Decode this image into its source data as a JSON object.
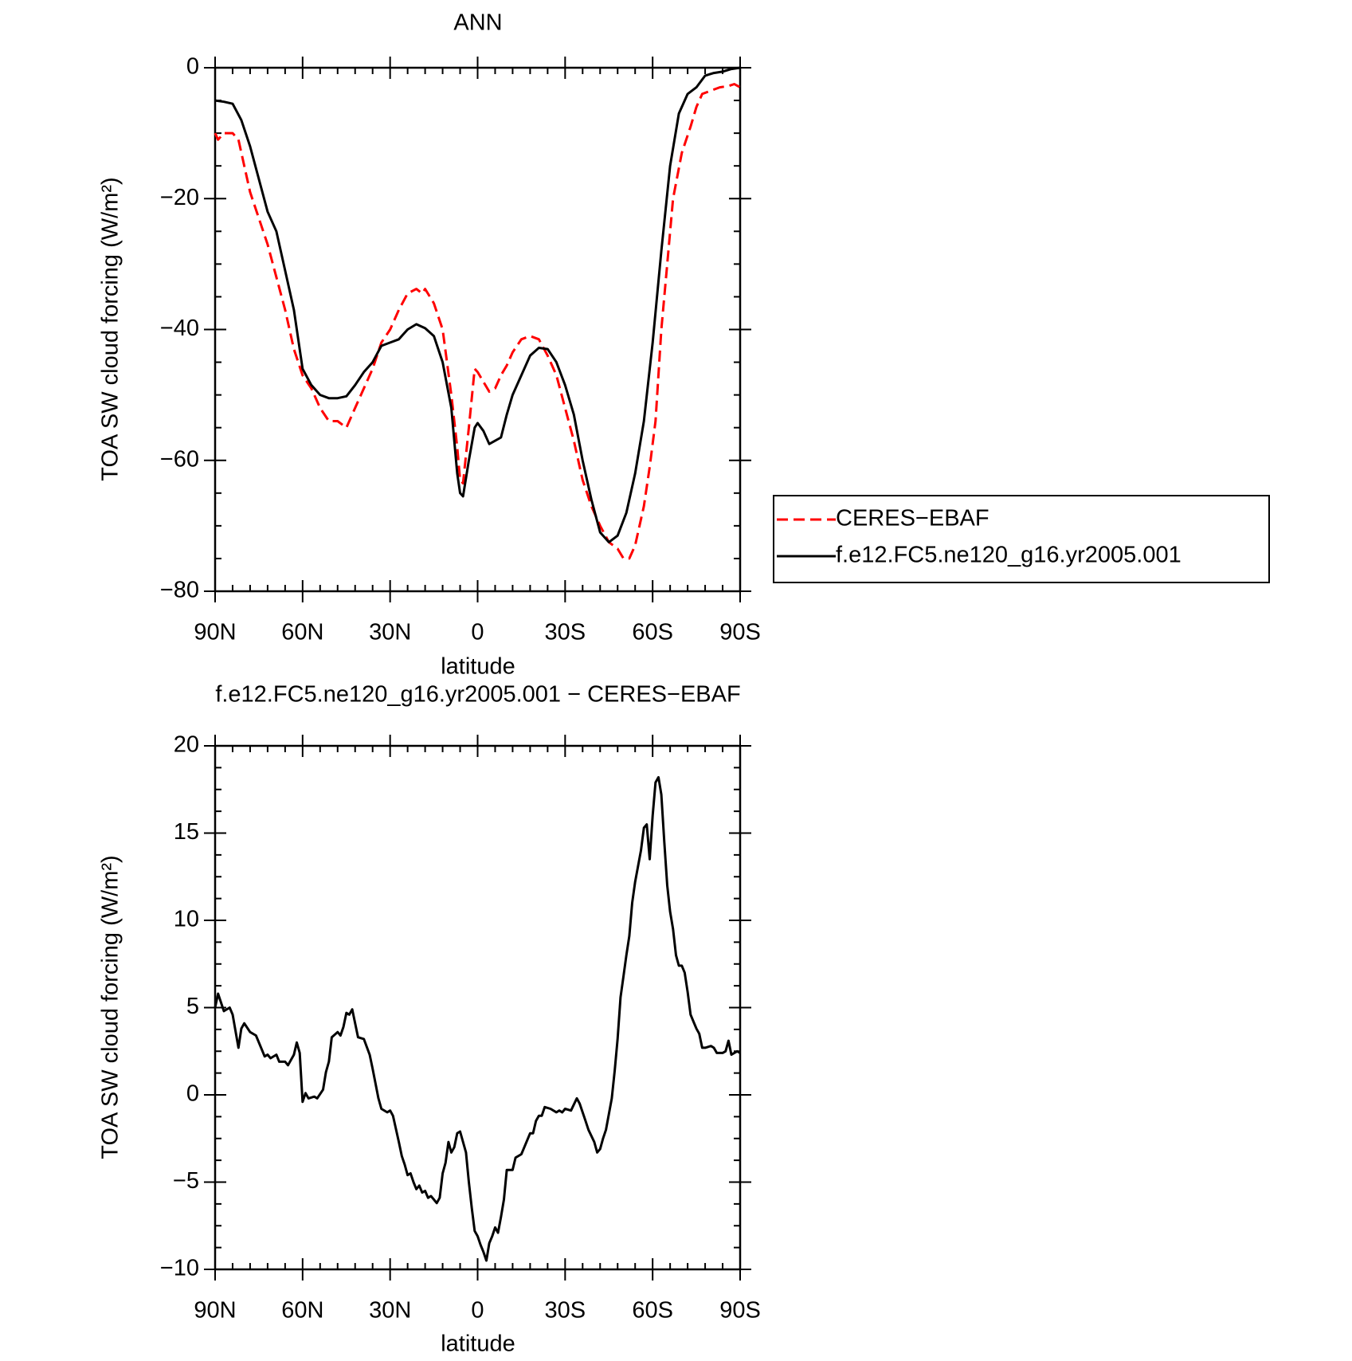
{
  "chart_data": [
    {
      "type": "line",
      "title": "ANN",
      "xlabel": "latitude",
      "ylabel": "TOA SW cloud forcing (W/m²)",
      "xlim": [
        90,
        -90
      ],
      "xticks": [
        {
          "value": 90,
          "label": "90N"
        },
        {
          "value": 60,
          "label": "60N"
        },
        {
          "value": 30,
          "label": "30N"
        },
        0,
        {
          "value": -30,
          "label": "30S"
        },
        {
          "value": -60,
          "label": "60S"
        },
        {
          "value": -90,
          "label": "90S"
        }
      ],
      "ylim": [
        -80,
        0
      ],
      "yticks": [
        {
          "value": -80,
          "label": "−80"
        },
        {
          "value": -60,
          "label": "−60"
        },
        {
          "value": -40,
          "label": "−40"
        },
        {
          "value": -20,
          "label": "−20"
        },
        0
      ],
      "legend": "right",
      "series": [
        {
          "name": "CERES−EBAF",
          "color": "#ff0000",
          "dash": true,
          "x": [
            90,
            89,
            87,
            84,
            82,
            80,
            78,
            75,
            72,
            69,
            66,
            63,
            60,
            57,
            54,
            51,
            48,
            45,
            42,
            39,
            36,
            33,
            30,
            27,
            24,
            21,
            19,
            18,
            15,
            12,
            9,
            7,
            6,
            5,
            3,
            1,
            0,
            -2,
            -4,
            -6,
            -8,
            -10,
            -12,
            -15,
            -18,
            -21,
            -24,
            -27,
            -30,
            -33,
            -36,
            -39,
            -42,
            -45,
            -48,
            -50,
            -52,
            -54,
            -57,
            -59,
            -61,
            -63,
            -65,
            -67,
            -70,
            -73,
            -75,
            -77,
            -80,
            -83,
            -86,
            -88,
            -90
          ],
          "values": [
            -10,
            -11,
            -10,
            -10,
            -11,
            -15,
            -19,
            -23,
            -27,
            -32,
            -37,
            -43,
            -47,
            -49,
            -52,
            -54,
            -54,
            -55,
            -52,
            -49,
            -46,
            -42,
            -40,
            -37,
            -34.5,
            -33.8,
            -34.5,
            -33.8,
            -36,
            -40,
            -50,
            -58,
            -63,
            -63.5,
            -55,
            -46,
            -46.5,
            -48,
            -49.5,
            -49,
            -47,
            -45.5,
            -43.5,
            -41.5,
            -41,
            -41.5,
            -44,
            -47,
            -52,
            -57,
            -63,
            -67,
            -70,
            -72.5,
            -73.5,
            -75,
            -75,
            -73,
            -67,
            -61,
            -54,
            -40,
            -30,
            -20,
            -13,
            -9,
            -6,
            -4,
            -3.5,
            -3,
            -2.8,
            -2.5,
            -3
          ]
        },
        {
          "name": "f.e12.FC5.ne120_g16.yr2005.001",
          "color": "#000000",
          "dash": false,
          "x": [
            90,
            87,
            84,
            81,
            78,
            75,
            72,
            69,
            66,
            63,
            60,
            57,
            54,
            51,
            48,
            45,
            42,
            39,
            36,
            33,
            30,
            27,
            24,
            21,
            18,
            15,
            12,
            9,
            7,
            6,
            5,
            3,
            1,
            0,
            -2,
            -4,
            -6,
            -8,
            -10,
            -12,
            -15,
            -18,
            -21,
            -24,
            -27,
            -30,
            -33,
            -36,
            -39,
            -42,
            -45,
            -48,
            -51,
            -54,
            -57,
            -60,
            -63,
            -66,
            -69,
            -72,
            -75,
            -78,
            -81,
            -84,
            -87,
            -90
          ],
          "values": [
            -5,
            -5.2,
            -5.5,
            -8,
            -12,
            -17,
            -22,
            -25,
            -31,
            -37,
            -46,
            -48.5,
            -50,
            -50.5,
            -50.5,
            -50.2,
            -48.5,
            -46.5,
            -45,
            -42.5,
            -42,
            -41.5,
            -40,
            -39.2,
            -39.8,
            -41,
            -45,
            -52,
            -62,
            -65,
            -65.5,
            -60,
            -55,
            -54.3,
            -55.5,
            -57.5,
            -57,
            -56.5,
            -53,
            -50,
            -47,
            -44,
            -42.8,
            -43,
            -45,
            -48.5,
            -53,
            -60,
            -66,
            -71,
            -72.5,
            -71.5,
            -68,
            -62,
            -54,
            -42,
            -28,
            -15,
            -7,
            -4,
            -3,
            -1.2,
            -0.8,
            -0.6,
            -0.2,
            0
          ]
        }
      ]
    },
    {
      "type": "line",
      "title": "f.e12.FC5.ne120_g16.yr2005.001 − CERES−EBAF",
      "xlabel": "latitude",
      "ylabel": "TOA SW cloud forcing (W/m²)",
      "xlim": [
        90,
        -90
      ],
      "xticks": [
        {
          "value": 90,
          "label": "90N"
        },
        {
          "value": 60,
          "label": "60N"
        },
        {
          "value": 30,
          "label": "30N"
        },
        0,
        {
          "value": -30,
          "label": "30S"
        },
        {
          "value": -60,
          "label": "60S"
        },
        {
          "value": -90,
          "label": "90S"
        }
      ],
      "ylim": [
        -10,
        20
      ],
      "yticks": [
        {
          "value": -10,
          "label": "−10"
        },
        {
          "value": -5,
          "label": "−5"
        },
        0,
        5,
        10,
        15,
        20
      ],
      "series": [
        {
          "color": "#000000",
          "dash": false,
          "x": [
            90,
            89,
            87,
            85,
            84,
            82,
            81,
            80,
            78,
            76,
            74,
            73,
            72,
            71,
            69,
            68,
            66,
            65,
            63,
            62,
            61,
            60,
            59,
            58,
            56,
            55,
            53,
            52,
            51,
            50,
            48,
            47,
            46,
            45,
            44,
            43,
            41,
            39,
            37,
            36,
            34,
            33,
            31,
            30,
            29,
            27,
            26,
            25,
            24,
            23,
            22,
            21,
            20,
            19,
            18,
            17,
            16,
            15,
            14,
            13,
            12,
            11,
            10,
            9,
            8,
            7,
            6,
            5,
            4,
            3,
            2,
            1,
            0,
            -1,
            -2,
            -3,
            -4,
            -5,
            -6,
            -7,
            -8,
            -9,
            -10,
            -12,
            -13,
            -15,
            -16,
            -18,
            -19,
            -20,
            -21,
            -22,
            -23,
            -25,
            -27,
            -28,
            -29,
            -30,
            -32,
            -34,
            -35,
            -37,
            -38,
            -40,
            -41,
            -42,
            -43,
            -44,
            -46,
            -47,
            -48,
            -49,
            -50,
            -51,
            -52,
            -53,
            -54,
            -56,
            -57,
            -58,
            -59,
            -60,
            -61,
            -62,
            -63,
            -64,
            -65,
            -66,
            -67,
            -68,
            -69,
            -70,
            -71,
            -72,
            -73,
            -74,
            -75,
            -76,
            -77,
            -78,
            -80,
            -81,
            -82,
            -84,
            -85,
            -86,
            -87,
            -89,
            -90
          ],
          "values": [
            5,
            5.8,
            4.8,
            5,
            4.6,
            2.7,
            3.8,
            4.1,
            3.6,
            3.4,
            2.6,
            2.2,
            2.3,
            2.1,
            2.3,
            1.9,
            1.9,
            1.7,
            2.3,
            3,
            2.4,
            -0.4,
            0.1,
            -0.2,
            -0.1,
            -0.2,
            0.3,
            1.3,
            1.9,
            3.3,
            3.6,
            3.4,
            3.9,
            4.7,
            4.6,
            4.9,
            3.3,
            3.2,
            2.3,
            1.5,
            -0.2,
            -0.8,
            -1,
            -0.9,
            -1.2,
            -2.7,
            -3.5,
            -4,
            -4.6,
            -4.5,
            -5,
            -5.4,
            -5.2,
            -5.6,
            -5.5,
            -5.9,
            -5.8,
            -6,
            -6.2,
            -5.9,
            -4.5,
            -3.9,
            -2.7,
            -3.3,
            -3,
            -2.2,
            -2.1,
            -2.7,
            -3.3,
            -5,
            -6.5,
            -7.8,
            -8.1,
            -8.6,
            -9,
            -9.5,
            -8.5,
            -8.1,
            -7.6,
            -7.9,
            -7,
            -6,
            -4.3,
            -4.3,
            -3.6,
            -3.4,
            -3,
            -2.2,
            -2.2,
            -1.5,
            -1.2,
            -1.2,
            -0.7,
            -0.8,
            -1,
            -0.9,
            -1,
            -0.8,
            -0.9,
            -0.2,
            -0.5,
            -1.5,
            -2,
            -2.7,
            -3.3,
            -3.1,
            -2.5,
            -2,
            -0.2,
            1.4,
            3.2,
            5.6,
            6.8,
            8,
            9.1,
            11,
            12.2,
            14,
            15.3,
            15.5,
            13.5,
            16,
            17.9,
            18.2,
            17.2,
            14.5,
            12,
            10.5,
            9.5,
            8,
            7.4,
            7.4,
            7,
            5.9,
            4.6,
            4.2,
            3.8,
            3.5,
            2.7,
            2.7,
            2.8,
            2.7,
            2.4,
            2.4,
            2.5,
            3.1,
            2.3,
            2.5,
            2.4
          ]
        }
      ]
    }
  ]
}
